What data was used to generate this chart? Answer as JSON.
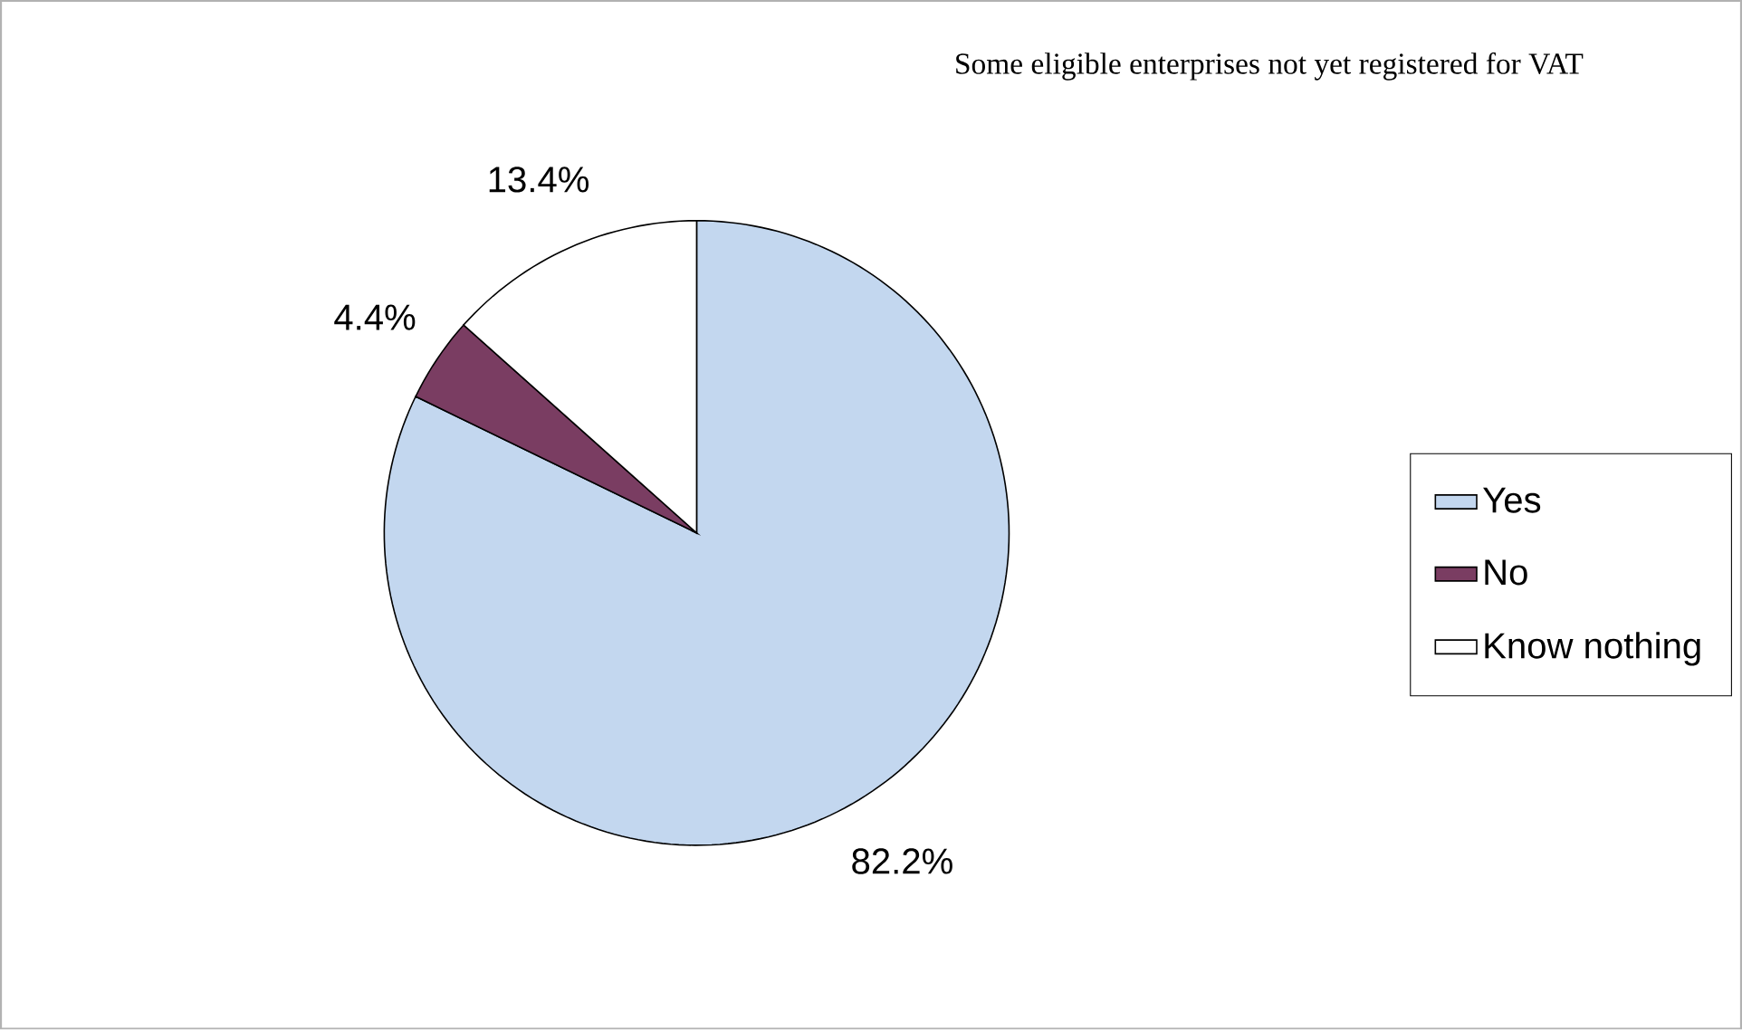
{
  "chart_data": {
    "type": "pie",
    "title": "Some eligible enterprises not yet registered for VAT",
    "categories": [
      "Yes",
      "No",
      "Know nothing"
    ],
    "values": [
      82.2,
      4.4,
      13.4
    ],
    "colors": [
      "#c3d7ef",
      "#7a3d62",
      "#ffffff"
    ],
    "data_labels": true,
    "value_labels": [
      "82.2%",
      "4.4%",
      "13.4%"
    ],
    "legend": "right"
  }
}
